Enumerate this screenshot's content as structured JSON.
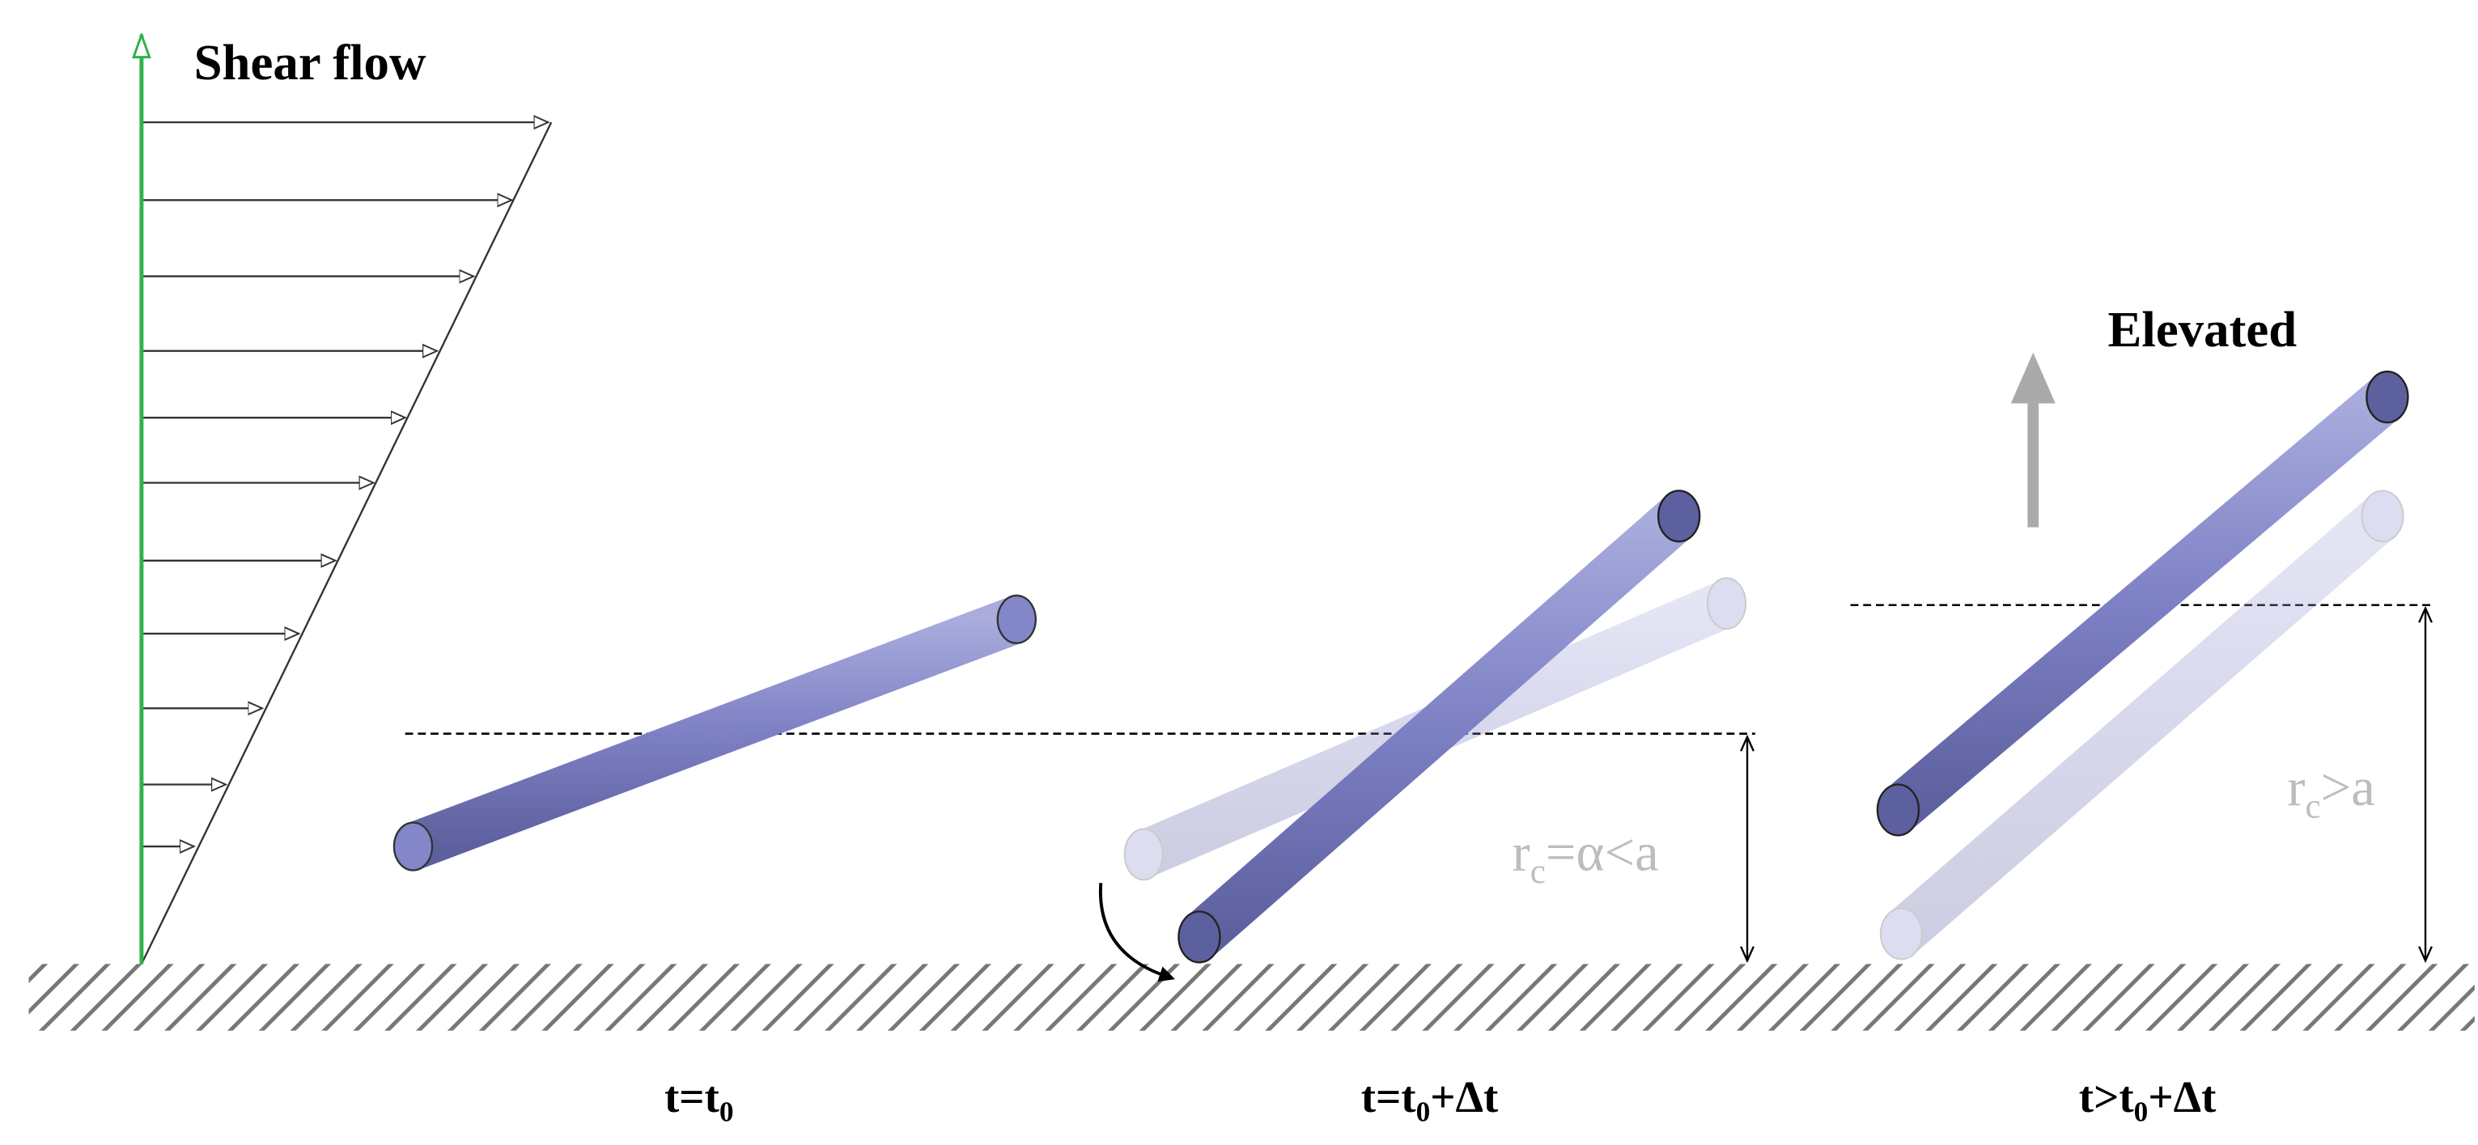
{
  "labels": {
    "shear_flow": "Shear flow",
    "elevated": "Elevated",
    "rc_small": [
      "r",
      "c",
      "=α<a"
    ],
    "rc_large": [
      "r",
      "c",
      ">a"
    ],
    "time_0": [
      "t=t",
      "0"
    ],
    "time_1": [
      "t=t",
      "0",
      "+Δt"
    ],
    "time_2": [
      "t>t",
      "0",
      "+Δt"
    ]
  }
}
